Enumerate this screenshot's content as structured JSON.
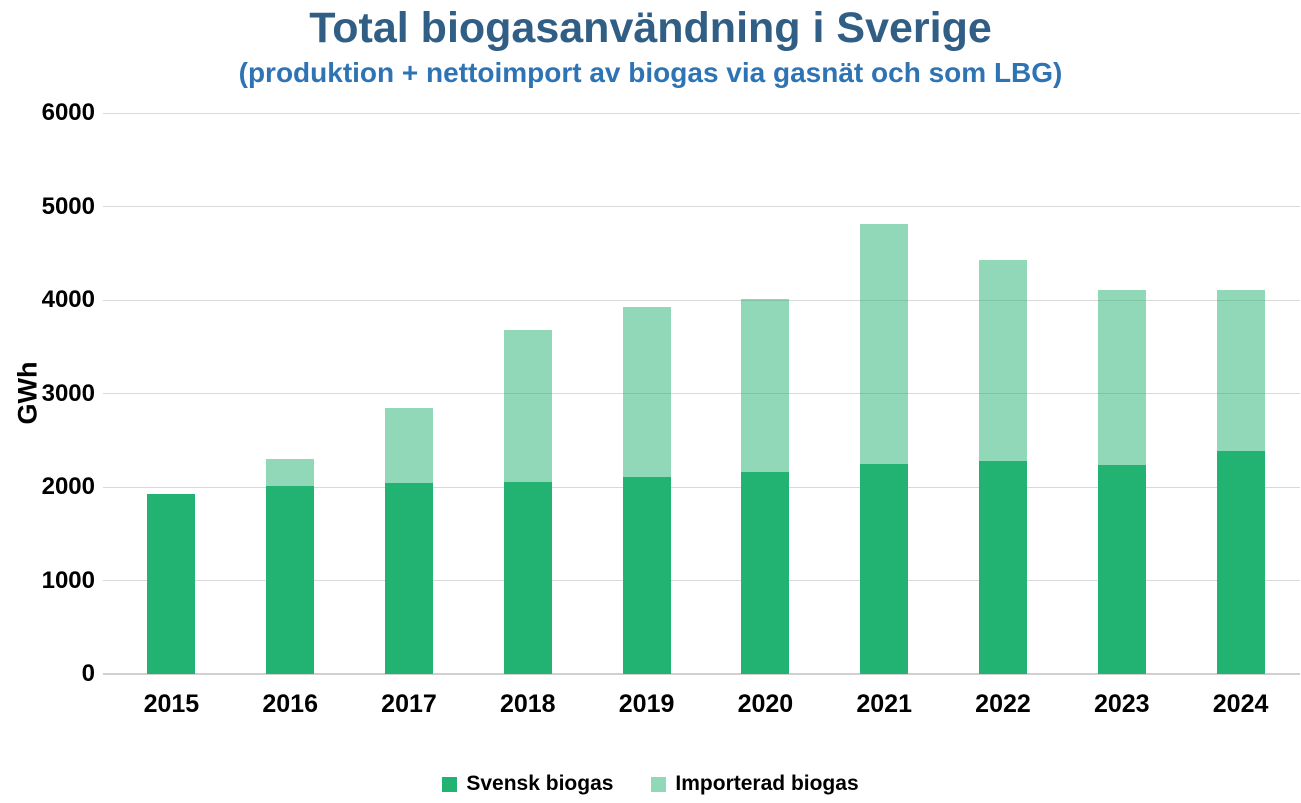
{
  "chart_data": {
    "type": "bar",
    "stacked": true,
    "title": "Total biogasanvändning i Sverige",
    "subtitle": "(produktion + nettoimport av biogas via gasnät och som LBG)",
    "ylabel": "GWh",
    "xlabel": "",
    "ylim": [
      0,
      6000
    ],
    "yticks": [
      0,
      1000,
      2000,
      3000,
      4000,
      5000,
      6000
    ],
    "grid": true,
    "legend_position": "bottom",
    "categories": [
      "2015",
      "2016",
      "2017",
      "2018",
      "2019",
      "2020",
      "2021",
      "2022",
      "2023",
      "2024"
    ],
    "series": [
      {
        "name": "Svensk biogas",
        "color": "#22B272",
        "values": [
          1930,
          2010,
          2040,
          2050,
          2110,
          2160,
          2250,
          2280,
          2240,
          2380
        ]
      },
      {
        "name": "Importerad biogas",
        "color": "rgba(34,178,114,0.5)",
        "values": [
          0,
          290,
          800,
          1630,
          1820,
          1850,
          2560,
          2150,
          1870,
          1730
        ]
      }
    ],
    "totals": [
      1930,
      2300,
      2840,
      3680,
      3930,
      4010,
      4810,
      4430,
      4110,
      4110
    ]
  },
  "colors": {
    "title": "#305E84",
    "subtitle": "#2E74B5",
    "gridline": "#D9D9D9",
    "axis_text": "#000000"
  }
}
